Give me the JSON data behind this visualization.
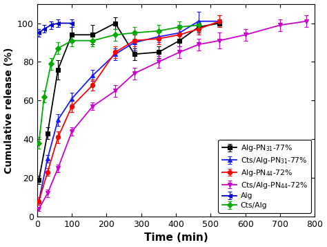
{
  "title": "",
  "xlabel": "Time (min)",
  "ylabel": "Cumulative release (%)",
  "xlim": [
    0,
    800
  ],
  "ylim": [
    0,
    110
  ],
  "xticks": [
    0,
    100,
    200,
    300,
    400,
    500,
    600,
    700,
    800
  ],
  "yticks": [
    0,
    20,
    40,
    60,
    80,
    100
  ],
  "series": [
    {
      "label": "Alg-PN$_{31}$-77%",
      "color": "#000000",
      "marker": "s",
      "x": [
        5,
        30,
        60,
        100,
        160,
        225,
        280,
        350,
        410,
        465,
        525
      ],
      "y": [
        19,
        43,
        76,
        94,
        94,
        100,
        84,
        85,
        91,
        98,
        100
      ],
      "yerr": [
        2,
        3,
        5,
        4,
        5,
        3,
        3,
        3,
        3,
        3,
        2
      ]
    },
    {
      "label": "Cts/Alg-PN$_{31}$-77%",
      "color": "#1a1aff",
      "marker": "^",
      "x": [
        5,
        30,
        60,
        100,
        160,
        225,
        280,
        350,
        410,
        465,
        525
      ],
      "y": [
        8,
        30,
        50,
        61,
        73,
        84,
        90,
        93,
        95,
        101,
        101
      ],
      "yerr": [
        2,
        2,
        3,
        3,
        3,
        3,
        4,
        3,
        4,
        5,
        3
      ]
    },
    {
      "label": "Alg-PN$_{44}$-72%",
      "color": "#ff0000",
      "marker": "o",
      "x": [
        5,
        30,
        60,
        100,
        160,
        225,
        280,
        350,
        410,
        465,
        525
      ],
      "y": [
        8,
        23,
        41,
        57,
        68,
        85,
        91,
        92,
        94,
        97,
        101
      ],
      "yerr": [
        2,
        2,
        3,
        3,
        3,
        3,
        3,
        3,
        3,
        3,
        3
      ]
    },
    {
      "label": "Cts/Alg-PN$_{44}$-72%",
      "color": "#cc00cc",
      "marker": "v",
      "x": [
        5,
        30,
        60,
        100,
        160,
        225,
        280,
        350,
        410,
        465,
        525,
        600,
        700,
        775
      ],
      "y": [
        4,
        12,
        25,
        44,
        57,
        65,
        74,
        80,
        85,
        89,
        91,
        94,
        99,
        101
      ],
      "yerr": [
        1,
        2,
        2,
        2,
        2,
        3,
        3,
        3,
        3,
        3,
        4,
        3,
        3,
        3
      ]
    },
    {
      "label": "Alg",
      "color": "#0000cc",
      "marker": "<",
      "x": [
        5,
        20,
        40,
        60,
        100
      ],
      "y": [
        95,
        97,
        99,
        100,
        100
      ],
      "yerr": [
        2,
        2,
        2,
        2,
        2
      ]
    },
    {
      "label": "Cts/Alg",
      "color": "#00aa00",
      "marker": "D",
      "x": [
        5,
        20,
        40,
        60,
        100,
        160,
        225,
        280,
        350,
        410,
        465
      ],
      "y": [
        38,
        62,
        79,
        87,
        91,
        91,
        94,
        95,
        96,
        98,
        99
      ],
      "yerr": [
        3,
        3,
        3,
        3,
        3,
        3,
        3,
        3,
        3,
        3,
        2
      ]
    }
  ],
  "legend_loc": "lower right",
  "figsize": [
    4.74,
    3.57
  ],
  "dpi": 100
}
